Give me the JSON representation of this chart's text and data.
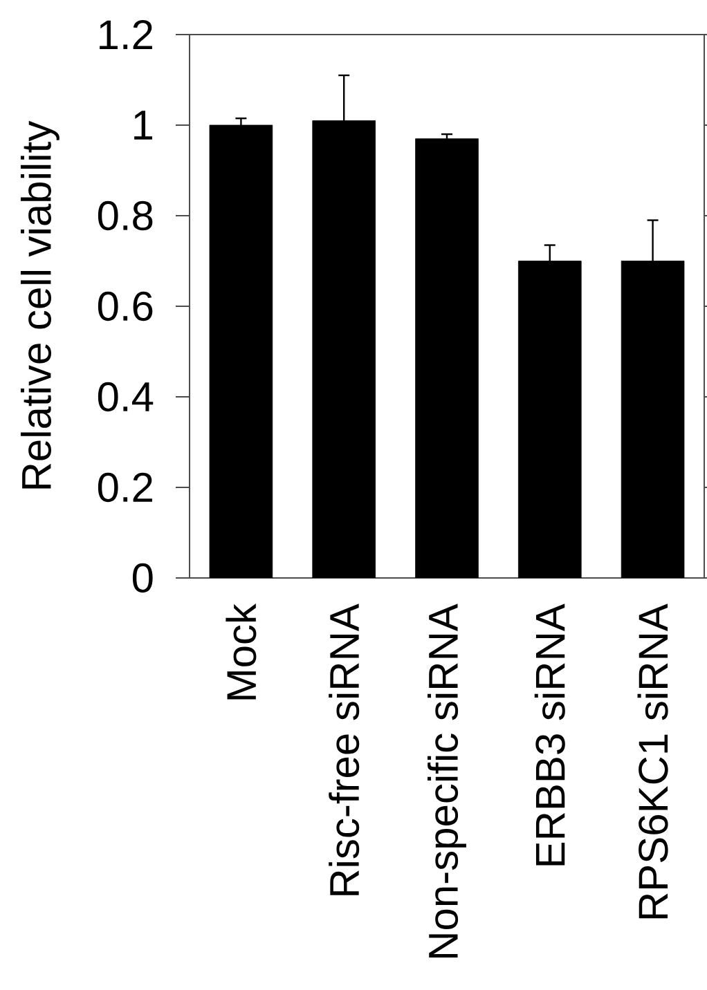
{
  "chart_data": {
    "type": "bar",
    "ylabel": "Relative cell viability",
    "categories": [
      "Mock",
      "Risc-free siRNA",
      "Non-specific siRNA",
      "ERBB3 siRNA",
      "RPS6KC1 siRNA"
    ],
    "values": [
      1.0,
      1.01,
      0.97,
      0.7,
      0.7
    ],
    "errors": [
      0.015,
      0.1,
      0.01,
      0.035,
      0.09
    ],
    "color": "#000000",
    "ylim": [
      0,
      1.2
    ],
    "yticks": [
      0,
      0.2,
      0.4,
      0.6,
      0.8,
      1,
      1.2
    ],
    "grid": false
  }
}
